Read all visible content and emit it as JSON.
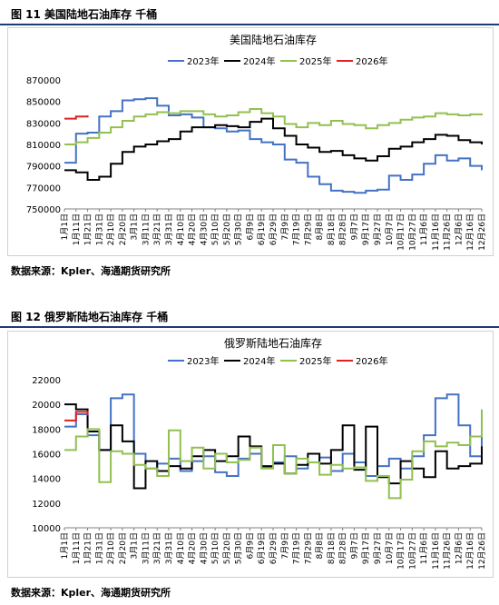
{
  "figure1": {
    "header": "图 11  美国陆地石油库存  千桶",
    "source": "数据来源：Kpler、海通期货研究所"
  },
  "figure2": {
    "header": "图 12  俄罗斯陆地石油库存  千桶",
    "source": "数据来源：Kpler、海通期货研究所"
  },
  "chart_data": [
    {
      "type": "line",
      "title": "美国陆地石油库存",
      "ylim": [
        750000,
        870000
      ],
      "yticks": [
        750000,
        770000,
        790000,
        810000,
        830000,
        850000,
        870000
      ],
      "ytick_labels": [
        "750000",
        "770000",
        "790000",
        "810000",
        "830000",
        "850000",
        "870000"
      ],
      "xticks": [
        "1月1日",
        "1月11日",
        "1月21日",
        "1月31日",
        "2月10日",
        "2月20日",
        "3月1日",
        "3月11日",
        "3月21日",
        "3月31日",
        "4月10日",
        "4月20日",
        "4月30日",
        "5月10日",
        "5月20日",
        "5月30日",
        "6月9日",
        "6月19日",
        "6月29日",
        "7月9日",
        "7月19日",
        "7月29日",
        "8月8日",
        "8月18日",
        "8月28日",
        "9月7日",
        "9月17日",
        "9月27日",
        "10月7日",
        "10月17日",
        "10月27日",
        "11月6日",
        "11月16日",
        "11月26日",
        "12月6日",
        "12月16日",
        "12月26日"
      ],
      "legend_position": "top",
      "grid": false,
      "series": [
        {
          "name": "2023年",
          "color": "#4472c4",
          "values": [
            793000,
            820000,
            821000,
            836000,
            841000,
            851000,
            852000,
            853000,
            846000,
            837000,
            838000,
            835000,
            826000,
            825000,
            822000,
            823000,
            815000,
            812000,
            810000,
            796000,
            793000,
            780000,
            773000,
            767000,
            766000,
            765000,
            767000,
            768000,
            781000,
            777000,
            782000,
            792000,
            800000,
            795000,
            797000,
            790000,
            786000
          ]
        },
        {
          "name": "2024年",
          "color": "#000000",
          "values": [
            786000,
            784000,
            777000,
            780000,
            792000,
            803000,
            808000,
            810000,
            813000,
            815000,
            822000,
            826000,
            826000,
            828000,
            827000,
            826000,
            831000,
            834000,
            825000,
            818000,
            810000,
            807000,
            803000,
            804000,
            800000,
            797000,
            795000,
            799000,
            806000,
            808000,
            812000,
            815000,
            819000,
            818000,
            814000,
            812000,
            810000
          ]
        },
        {
          "name": "2025年",
          "color": "#92c050",
          "values": [
            810000,
            812000,
            816000,
            821000,
            826000,
            832000,
            836000,
            838000,
            840000,
            839000,
            841000,
            841000,
            838000,
            836000,
            837000,
            840000,
            843000,
            839000,
            836000,
            829000,
            826000,
            830000,
            828000,
            832000,
            829000,
            828000,
            825000,
            828000,
            830000,
            833000,
            835000,
            836000,
            839000,
            838000,
            837000,
            838000,
            837000
          ]
        },
        {
          "name": "2026年",
          "color": "#e02020",
          "values": [
            834000,
            836000,
            837000
          ]
        }
      ]
    },
    {
      "type": "line",
      "title": "俄罗斯陆地石油库存",
      "ylim": [
        10000,
        22000
      ],
      "yticks": [
        10000,
        12000,
        14000,
        16000,
        18000,
        20000,
        22000
      ],
      "ytick_labels": [
        "10000",
        "12000",
        "14000",
        "16000",
        "18000",
        "20000",
        "22000"
      ],
      "xticks": [
        "1月1日",
        "1月11日",
        "1月21日",
        "1月31日",
        "2月10日",
        "2月20日",
        "3月1日",
        "3月11日",
        "3月21日",
        "3月31日",
        "4月10日",
        "4月20日",
        "4月30日",
        "5月10日",
        "5月20日",
        "5月30日",
        "6月9日",
        "6月19日",
        "6月29日",
        "7月9日",
        "7月19日",
        "7月29日",
        "8月8日",
        "8月18日",
        "8月28日",
        "9月7日",
        "9月17日",
        "9月27日",
        "10月7日",
        "10月17日",
        "10月27日",
        "11月6日",
        "11月16日",
        "11月26日",
        "12月6日",
        "12月16日",
        "12月26日"
      ],
      "legend_position": "top",
      "grid": false,
      "series": [
        {
          "name": "2023年",
          "color": "#4472c4",
          "values": [
            18200,
            19200,
            17500,
            16300,
            20500,
            20800,
            16000,
            14800,
            15200,
            15600,
            14600,
            15400,
            15800,
            14500,
            14200,
            15600,
            16000,
            14900,
            15300,
            15800,
            14800,
            15300,
            15700,
            14600,
            16000,
            15300,
            14200,
            15000,
            15600,
            14800,
            15800,
            17500,
            20500,
            20800,
            18300,
            15800,
            18500
          ]
        },
        {
          "name": "2024年",
          "color": "#000000",
          "values": [
            20000,
            19600,
            17800,
            16300,
            18300,
            17000,
            13200,
            15400,
            14600,
            15000,
            14800,
            15800,
            16300,
            15400,
            15800,
            17400,
            16600,
            15000,
            15200,
            14400,
            15100,
            16000,
            15200,
            16300,
            18300,
            14700,
            18200,
            14100,
            13600,
            15400,
            14800,
            14100,
            16200,
            14800,
            15000,
            15200,
            16600
          ]
        },
        {
          "name": "2025年",
          "color": "#92c050",
          "values": [
            16300,
            17400,
            18000,
            13700,
            16200,
            16000,
            15100,
            14800,
            14200,
            17900,
            15400,
            16500,
            14800,
            16000,
            15300,
            15500,
            16500,
            14800,
            16700,
            14400,
            15600,
            15300,
            14300,
            15100,
            14800,
            14900,
            13800,
            14200,
            12400,
            13900,
            16200,
            17000,
            16600,
            16900,
            16700,
            17400,
            19600
          ]
        },
        {
          "name": "2026年",
          "color": "#e02020",
          "values": [
            18700,
            19400,
            19100
          ]
        }
      ]
    }
  ]
}
